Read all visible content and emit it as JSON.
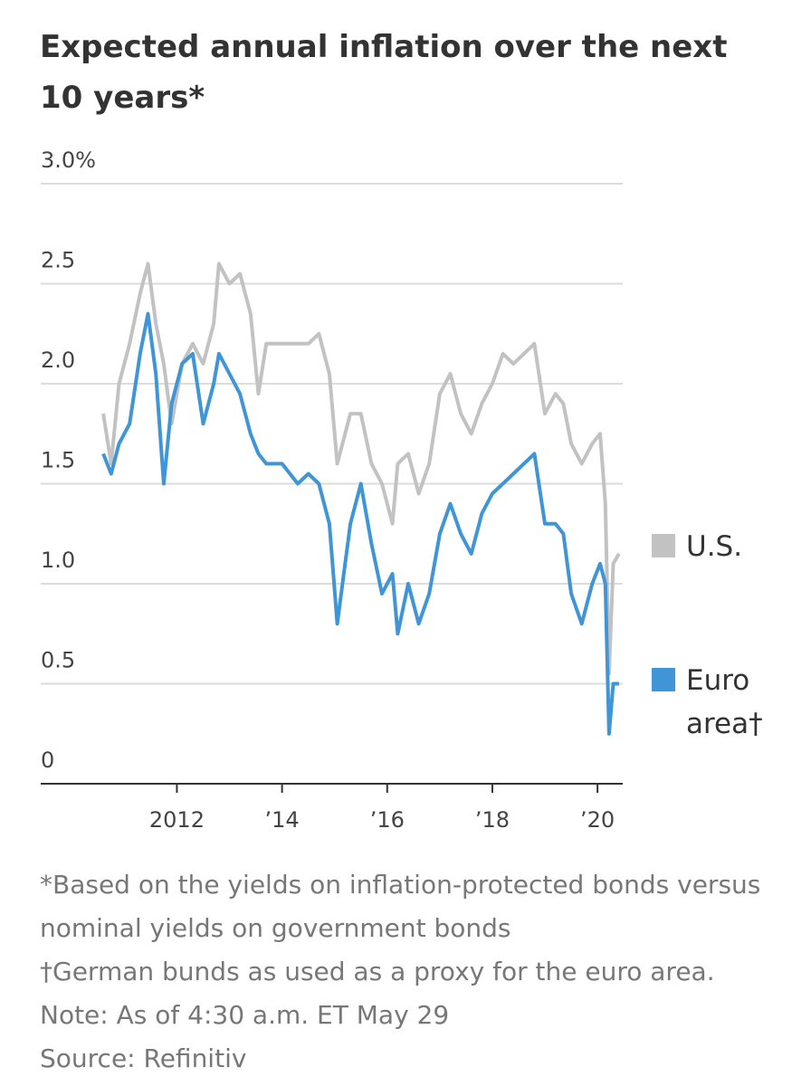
{
  "chart_data": {
    "type": "line",
    "title": "Expected annual inflation over the next 10 years*",
    "x": [
      2010.6,
      2010.75,
      2010.9,
      2011.1,
      2011.3,
      2011.45,
      2011.6,
      2011.75,
      2011.9,
      2012.1,
      2012.3,
      2012.5,
      2012.7,
      2012.8,
      2013.0,
      2013.2,
      2013.4,
      2013.55,
      2013.7,
      2014.0,
      2014.3,
      2014.5,
      2014.7,
      2014.9,
      2015.05,
      2015.3,
      2015.5,
      2015.7,
      2015.9,
      2016.1,
      2016.2,
      2016.4,
      2016.6,
      2016.8,
      2017.0,
      2017.2,
      2017.4,
      2017.6,
      2017.8,
      2018.0,
      2018.2,
      2018.4,
      2018.6,
      2018.8,
      2019.0,
      2019.2,
      2019.35,
      2019.5,
      2019.7,
      2019.9,
      2020.05,
      2020.15,
      2020.22,
      2020.3,
      2020.41
    ],
    "series": [
      {
        "name": "U.S.",
        "color": "#c2c2c2",
        "values": [
          1.85,
          1.6,
          2.0,
          2.2,
          2.45,
          2.6,
          2.3,
          2.1,
          1.8,
          2.1,
          2.2,
          2.1,
          2.3,
          2.6,
          2.5,
          2.55,
          2.35,
          1.95,
          2.2,
          2.2,
          2.2,
          2.2,
          2.25,
          2.05,
          1.6,
          1.85,
          1.85,
          1.6,
          1.5,
          1.3,
          1.6,
          1.65,
          1.45,
          1.6,
          1.95,
          2.05,
          1.85,
          1.75,
          1.9,
          2.0,
          2.15,
          2.1,
          2.15,
          2.2,
          1.85,
          1.95,
          1.9,
          1.7,
          1.6,
          1.7,
          1.75,
          1.4,
          0.55,
          1.1,
          1.15
        ]
      },
      {
        "name": "Euro area†",
        "color": "#3f95d6",
        "values": [
          1.65,
          1.55,
          1.7,
          1.8,
          2.15,
          2.35,
          2.05,
          1.5,
          1.9,
          2.1,
          2.15,
          1.8,
          2.0,
          2.15,
          2.05,
          1.95,
          1.75,
          1.65,
          1.6,
          1.6,
          1.5,
          1.55,
          1.5,
          1.3,
          0.8,
          1.3,
          1.5,
          1.2,
          0.95,
          1.05,
          0.75,
          1.0,
          0.8,
          0.95,
          1.25,
          1.4,
          1.25,
          1.15,
          1.35,
          1.45,
          1.5,
          1.55,
          1.6,
          1.65,
          1.3,
          1.3,
          1.25,
          0.95,
          0.8,
          1.0,
          1.1,
          1.0,
          0.25,
          0.5,
          0.5
        ]
      }
    ],
    "xlim": [
      2009.41,
      2020.48
    ],
    "xticks": [
      {
        "value": 2012,
        "label": "2012"
      },
      {
        "value": 2014,
        "label": "’14"
      },
      {
        "value": 2016,
        "label": "’16"
      },
      {
        "value": 2018,
        "label": "’18"
      },
      {
        "value": 2020,
        "label": "’20"
      }
    ],
    "ylim": [
      0,
      3
    ],
    "yticks": [
      0,
      0.5,
      {
        "value": 1,
        "label": "1.0"
      },
      1.5,
      {
        "value": 2,
        "label": "2.0"
      },
      2.5,
      {
        "value": 3,
        "label": "3.0%"
      }
    ],
    "grid": true,
    "legend": "right",
    "notes": [
      "*Based on the yields on inflation-protected bonds versus nominal yields on government bonds",
      "†German bunds as used as a proxy for the euro area.",
      "Note: As of 4:30 a.m. ET May 29",
      "Source: Refinitiv"
    ]
  }
}
